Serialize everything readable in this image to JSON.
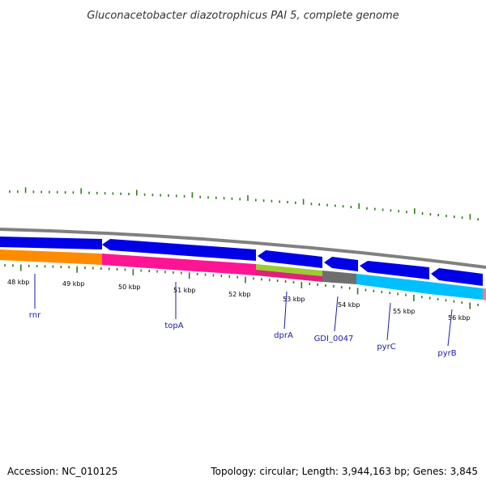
{
  "title": "Gluconacetobacter diazotrophicus PAI 5, complete genome",
  "footer": {
    "accession": "Accession: NC_010125",
    "topology": "Topology: circular; Length: 3,944,163 bp; Genes: 3,845"
  },
  "colors": {
    "backbone": "#808080",
    "forward_cds": "#0000e6",
    "tick": "#2e7d18",
    "label_line": "#1a1aa8"
  },
  "scale_labels": [
    "48 kbp",
    "49 kbp",
    "50 kbp",
    "51 kbp",
    "52 kbp",
    "53 kbp",
    "54 kbp",
    "55 kbp",
    "56 kbp"
  ],
  "features": [
    {
      "name": "rnr",
      "color": "#ff8c00"
    },
    {
      "name": "topA",
      "color": "#ff1493"
    },
    {
      "name": "dprA",
      "color": "#9acd32"
    },
    {
      "name": "GDI_0047",
      "color": "#6e6e6e"
    },
    {
      "name": "pyrC",
      "color": "#00bfff"
    },
    {
      "name": "pyrB",
      "color": "#00bfff"
    }
  ]
}
